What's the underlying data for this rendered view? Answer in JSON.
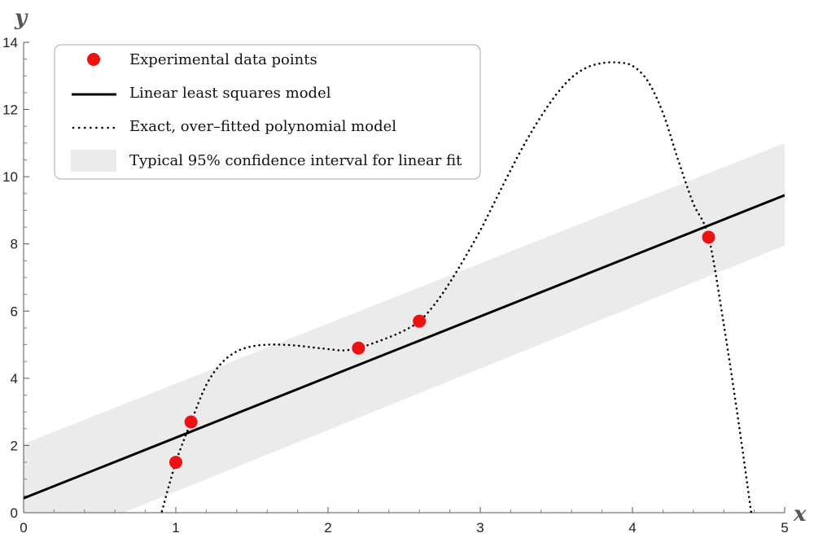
{
  "chart_data": {
    "type": "scatter",
    "xlabel": "x",
    "ylabel": "y",
    "xlim": [
      0,
      5
    ],
    "ylim": [
      0,
      14
    ],
    "x_ticks": [
      "0",
      "1",
      "2",
      "3",
      "4",
      "5"
    ],
    "y_ticks": [
      "0",
      "2",
      "4",
      "6",
      "8",
      "10",
      "12",
      "14"
    ],
    "grid": false,
    "legend_position": "top-left",
    "legend": [
      {
        "label": "Experimental data points",
        "kind": "marker"
      },
      {
        "label": "Linear least squares model",
        "kind": "line"
      },
      {
        "label": "Exact, over–fitted polynomial model",
        "kind": "dotted"
      },
      {
        "label": "Typical 95% confidence interval for linear fit",
        "kind": "band"
      }
    ],
    "series": [
      {
        "name": "Experimental data points",
        "type": "scatter",
        "color": "#ee1111",
        "x": [
          1.0,
          1.1,
          2.2,
          2.6,
          4.5
        ],
        "y": [
          1.5,
          2.7,
          4.9,
          5.7,
          8.2
        ]
      },
      {
        "name": "Linear least squares model",
        "type": "line",
        "color": "#000000",
        "x": [
          0,
          5
        ],
        "y": [
          0.43,
          9.45
        ]
      },
      {
        "name": "Exact, over–fitted polynomial model",
        "type": "dotted-line",
        "color": "#000000",
        "x": [
          0.9,
          1.0,
          1.1,
          1.2,
          1.3,
          1.4,
          1.5,
          1.6,
          1.7,
          1.8,
          1.9,
          2.0,
          2.1,
          2.2,
          2.3,
          2.4,
          2.5,
          2.6,
          2.7,
          2.8,
          2.9,
          3.0,
          3.1,
          3.2,
          3.3,
          3.4,
          3.5,
          3.6,
          3.7,
          3.8,
          3.9,
          4.0,
          4.1,
          4.2,
          4.3,
          4.4,
          4.5,
          4.6,
          4.7,
          4.78
        ],
        "y": [
          -0.1,
          1.5,
          2.7,
          3.8,
          4.45,
          4.8,
          4.95,
          5.0,
          5.0,
          4.97,
          4.92,
          4.87,
          4.83,
          4.9,
          5.05,
          5.22,
          5.42,
          5.7,
          6.2,
          6.85,
          7.6,
          8.4,
          9.3,
          10.2,
          11.05,
          11.8,
          12.45,
          12.95,
          13.25,
          13.38,
          13.4,
          13.3,
          12.85,
          11.9,
          10.5,
          9.2,
          8.2,
          5.6,
          2.6,
          0.0
        ]
      },
      {
        "name": "Typical 95% confidence interval for linear fit",
        "type": "band",
        "color": "#ebebeb",
        "x": [
          0,
          5
        ],
        "y_lower": [
          -1.2,
          7.95
        ],
        "y_upper": [
          2.05,
          11.0
        ]
      }
    ]
  }
}
